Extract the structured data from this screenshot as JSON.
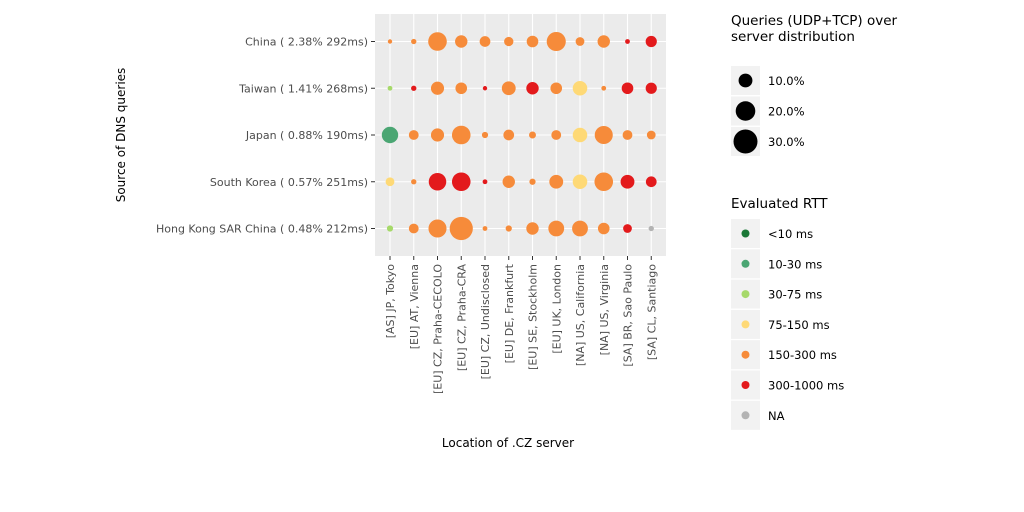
{
  "chart_data": {
    "type": "scatter",
    "xlabel": "Location of .CZ server",
    "ylabel": "Source of DNS queries",
    "x_categories": [
      "[AS] JP, Tokyo",
      "[EU] AT, Vienna",
      "[EU] CZ, Praha-CECOLO",
      "[EU] CZ, Praha-CRA",
      "[EU] CZ, Undisclosed",
      "[EU] DE, Frankfurt",
      "[EU] SE, Stockholm",
      "[EU] UK, London",
      "[NA] US, California",
      "[NA] US, Virginia",
      "[SA] BR, Sao Paulo",
      "[SA] CL, Santiago"
    ],
    "y_categories": [
      "China ( 2.38% 292ms)",
      "Taiwan ( 1.41% 268ms)",
      "Japan ( 0.88% 190ms)",
      "South Korea ( 0.57% 251ms)",
      "Hong Kong SAR China ( 0.48% 212ms)"
    ],
    "size_legend": {
      "title": "Queries (UDP+TCP) over server distribution",
      "title_lines": [
        "Queries (UDP+TCP) over",
        "server distribution"
      ],
      "items": [
        {
          "label": "10.0%",
          "value": 10
        },
        {
          "label": "20.0%",
          "value": 20
        },
        {
          "label": "30.0%",
          "value": 30
        }
      ]
    },
    "color_legend": {
      "title": "Evaluated RTT",
      "items": [
        {
          "label": "<10 ms",
          "color": "#1a7837"
        },
        {
          "label": "10-30 ms",
          "color": "#4ba673"
        },
        {
          "label": "30-75 ms",
          "color": "#a6d96a"
        },
        {
          "label": "75-150 ms",
          "color": "#fed976"
        },
        {
          "label": "150-300 ms",
          "color": "#f68b3a"
        },
        {
          "label": "300-1000 ms",
          "color": "#e31a1c"
        },
        {
          "label": "NA",
          "color": "#b3b3b3"
        }
      ]
    },
    "points": [
      {
        "source": "China ( 2.38% 292ms)",
        "server": "[AS] JP, Tokyo",
        "share": 1.0,
        "rtt": "150-300 ms"
      },
      {
        "source": "China ( 2.38% 292ms)",
        "server": "[EU] AT, Vienna",
        "share": 1.5,
        "rtt": "150-300 ms"
      },
      {
        "source": "China ( 2.38% 292ms)",
        "server": "[EU] CZ, Praha-CECOLO",
        "share": 18,
        "rtt": "150-300 ms"
      },
      {
        "source": "China ( 2.38% 292ms)",
        "server": "[EU] CZ, Praha-CRA",
        "share": 8,
        "rtt": "150-300 ms"
      },
      {
        "source": "China ( 2.38% 292ms)",
        "server": "[EU] CZ, Undisclosed",
        "share": 6,
        "rtt": "150-300 ms"
      },
      {
        "source": "China ( 2.38% 292ms)",
        "server": "[EU] DE, Frankfurt",
        "share": 4.5,
        "rtt": "150-300 ms"
      },
      {
        "source": "China ( 2.38% 292ms)",
        "server": "[EU] SE, Stockholm",
        "share": 7,
        "rtt": "150-300 ms"
      },
      {
        "source": "China ( 2.38% 292ms)",
        "server": "[EU] UK, London",
        "share": 19,
        "rtt": "150-300 ms"
      },
      {
        "source": "China ( 2.38% 292ms)",
        "server": "[NA] US, California",
        "share": 4,
        "rtt": "150-300 ms"
      },
      {
        "source": "China ( 2.38% 292ms)",
        "server": "[NA] US, Virginia",
        "share": 8,
        "rtt": "150-300 ms"
      },
      {
        "source": "China ( 2.38% 292ms)",
        "server": "[SA] BR, Sao Paulo",
        "share": 1.2,
        "rtt": "300-1000 ms"
      },
      {
        "source": "China ( 2.38% 292ms)",
        "server": "[SA] CL, Santiago",
        "share": 6.5,
        "rtt": "300-1000 ms"
      },
      {
        "source": "Taiwan ( 1.41% 268ms)",
        "server": "[AS] JP, Tokyo",
        "share": 1.2,
        "rtt": "30-75 ms"
      },
      {
        "source": "Taiwan ( 1.41% 268ms)",
        "server": "[EU] AT, Vienna",
        "share": 1.5,
        "rtt": "300-1000 ms"
      },
      {
        "source": "Taiwan ( 1.41% 268ms)",
        "server": "[EU] CZ, Praha-CECOLO",
        "share": 9,
        "rtt": "150-300 ms"
      },
      {
        "source": "Taiwan ( 1.41% 268ms)",
        "server": "[EU] CZ, Praha-CRA",
        "share": 7,
        "rtt": "150-300 ms"
      },
      {
        "source": "Taiwan ( 1.41% 268ms)",
        "server": "[EU] CZ, Undisclosed",
        "share": 1.0,
        "rtt": "300-1000 ms"
      },
      {
        "source": "Taiwan ( 1.41% 268ms)",
        "server": "[EU] DE, Frankfurt",
        "share": 10,
        "rtt": "150-300 ms"
      },
      {
        "source": "Taiwan ( 1.41% 268ms)",
        "server": "[EU] SE, Stockholm",
        "share": 8,
        "rtt": "300-1000 ms"
      },
      {
        "source": "Taiwan ( 1.41% 268ms)",
        "server": "[EU] UK, London",
        "share": 7,
        "rtt": "150-300 ms"
      },
      {
        "source": "Taiwan ( 1.41% 268ms)",
        "server": "[NA] US, California",
        "share": 11,
        "rtt": "75-150 ms"
      },
      {
        "source": "Taiwan ( 1.41% 268ms)",
        "server": "[NA] US, Virginia",
        "share": 1.2,
        "rtt": "150-300 ms"
      },
      {
        "source": "Taiwan ( 1.41% 268ms)",
        "server": "[SA] BR, Sao Paulo",
        "share": 7,
        "rtt": "300-1000 ms"
      },
      {
        "source": "Taiwan ( 1.41% 268ms)",
        "server": "[SA] CL, Santiago",
        "share": 6.5,
        "rtt": "300-1000 ms"
      },
      {
        "source": "Japan ( 0.88% 190ms)",
        "server": "[AS] JP, Tokyo",
        "share": 14,
        "rtt": "10-30 ms"
      },
      {
        "source": "Japan ( 0.88% 190ms)",
        "server": "[EU] AT, Vienna",
        "share": 5,
        "rtt": "150-300 ms"
      },
      {
        "source": "Japan ( 0.88% 190ms)",
        "server": "[EU] CZ, Praha-CECOLO",
        "share": 9,
        "rtt": "150-300 ms"
      },
      {
        "source": "Japan ( 0.88% 190ms)",
        "server": "[EU] CZ, Praha-CRA",
        "share": 18,
        "rtt": "150-300 ms"
      },
      {
        "source": "Japan ( 0.88% 190ms)",
        "server": "[EU] CZ, Undisclosed",
        "share": 2,
        "rtt": "150-300 ms"
      },
      {
        "source": "Japan ( 0.88% 190ms)",
        "server": "[EU] DE, Frankfurt",
        "share": 6,
        "rtt": "150-300 ms"
      },
      {
        "source": "Japan ( 0.88% 190ms)",
        "server": "[EU] SE, Stockholm",
        "share": 2.5,
        "rtt": "150-300 ms"
      },
      {
        "source": "Japan ( 0.88% 190ms)",
        "server": "[EU] UK, London",
        "share": 5,
        "rtt": "150-300 ms"
      },
      {
        "source": "Japan ( 0.88% 190ms)",
        "server": "[NA] US, California",
        "share": 11,
        "rtt": "75-150 ms"
      },
      {
        "source": "Japan ( 0.88% 190ms)",
        "server": "[NA] US, Virginia",
        "share": 17,
        "rtt": "150-300 ms"
      },
      {
        "source": "Japan ( 0.88% 190ms)",
        "server": "[SA] BR, Sao Paulo",
        "share": 5,
        "rtt": "150-300 ms"
      },
      {
        "source": "Japan ( 0.88% 190ms)",
        "server": "[SA] CL, Santiago",
        "share": 4,
        "rtt": "150-300 ms"
      },
      {
        "source": "South Korea ( 0.57% 251ms)",
        "server": "[AS] JP, Tokyo",
        "share": 4,
        "rtt": "75-150 ms"
      },
      {
        "source": "South Korea ( 0.57% 251ms)",
        "server": "[EU] AT, Vienna",
        "share": 1.5,
        "rtt": "150-300 ms"
      },
      {
        "source": "South Korea ( 0.57% 251ms)",
        "server": "[EU] CZ, Praha-CECOLO",
        "share": 16,
        "rtt": "300-1000 ms"
      },
      {
        "source": "South Korea ( 0.57% 251ms)",
        "server": "[EU] CZ, Praha-CRA",
        "share": 18,
        "rtt": "300-1000 ms"
      },
      {
        "source": "South Korea ( 0.57% 251ms)",
        "server": "[EU] CZ, Undisclosed",
        "share": 1.2,
        "rtt": "300-1000 ms"
      },
      {
        "source": "South Korea ( 0.57% 251ms)",
        "server": "[EU] DE, Frankfurt",
        "share": 8,
        "rtt": "150-300 ms"
      },
      {
        "source": "South Korea ( 0.57% 251ms)",
        "server": "[EU] SE, Stockholm",
        "share": 2,
        "rtt": "150-300 ms"
      },
      {
        "source": "South Korea ( 0.57% 251ms)",
        "server": "[EU] UK, London",
        "share": 10,
        "rtt": "150-300 ms"
      },
      {
        "source": "South Korea ( 0.57% 251ms)",
        "server": "[NA] US, California",
        "share": 11,
        "rtt": "75-150 ms"
      },
      {
        "source": "South Korea ( 0.57% 251ms)",
        "server": "[NA] US, Virginia",
        "share": 18,
        "rtt": "150-300 ms"
      },
      {
        "source": "South Korea ( 0.57% 251ms)",
        "server": "[SA] BR, Sao Paulo",
        "share": 10,
        "rtt": "300-1000 ms"
      },
      {
        "source": "South Korea ( 0.57% 251ms)",
        "server": "[SA] CL, Santiago",
        "share": 6,
        "rtt": "300-1000 ms"
      },
      {
        "source": "Hong Kong SAR China ( 0.48% 212ms)",
        "server": "[AS] JP, Tokyo",
        "share": 2,
        "rtt": "30-75 ms"
      },
      {
        "source": "Hong Kong SAR China ( 0.48% 212ms)",
        "server": "[EU] AT, Vienna",
        "share": 5,
        "rtt": "150-300 ms"
      },
      {
        "source": "Hong Kong SAR China ( 0.48% 212ms)",
        "server": "[EU] CZ, Praha-CECOLO",
        "share": 17,
        "rtt": "150-300 ms"
      },
      {
        "source": "Hong Kong SAR China ( 0.48% 212ms)",
        "server": "[EU] CZ, Praha-CRA",
        "share": 28,
        "rtt": "150-300 ms"
      },
      {
        "source": "Hong Kong SAR China ( 0.48% 212ms)",
        "server": "[EU] CZ, Undisclosed",
        "share": 1.2,
        "rtt": "150-300 ms"
      },
      {
        "source": "Hong Kong SAR China ( 0.48% 212ms)",
        "server": "[EU] DE, Frankfurt",
        "share": 2,
        "rtt": "150-300 ms"
      },
      {
        "source": "Hong Kong SAR China ( 0.48% 212ms)",
        "server": "[EU] SE, Stockholm",
        "share": 8,
        "rtt": "150-300 ms"
      },
      {
        "source": "Hong Kong SAR China ( 0.48% 212ms)",
        "server": "[EU] UK, London",
        "share": 13,
        "rtt": "150-300 ms"
      },
      {
        "source": "Hong Kong SAR China ( 0.48% 212ms)",
        "server": "[NA] US, California",
        "share": 13,
        "rtt": "150-300 ms"
      },
      {
        "source": "Hong Kong SAR China ( 0.48% 212ms)",
        "server": "[NA] US, Virginia",
        "share": 7,
        "rtt": "150-300 ms"
      },
      {
        "source": "Hong Kong SAR China ( 0.48% 212ms)",
        "server": "[SA] BR, Sao Paulo",
        "share": 4,
        "rtt": "300-1000 ms"
      },
      {
        "source": "Hong Kong SAR China ( 0.48% 212ms)",
        "server": "[SA] CL, Santiago",
        "share": 1.5,
        "rtt": "NA"
      }
    ]
  }
}
